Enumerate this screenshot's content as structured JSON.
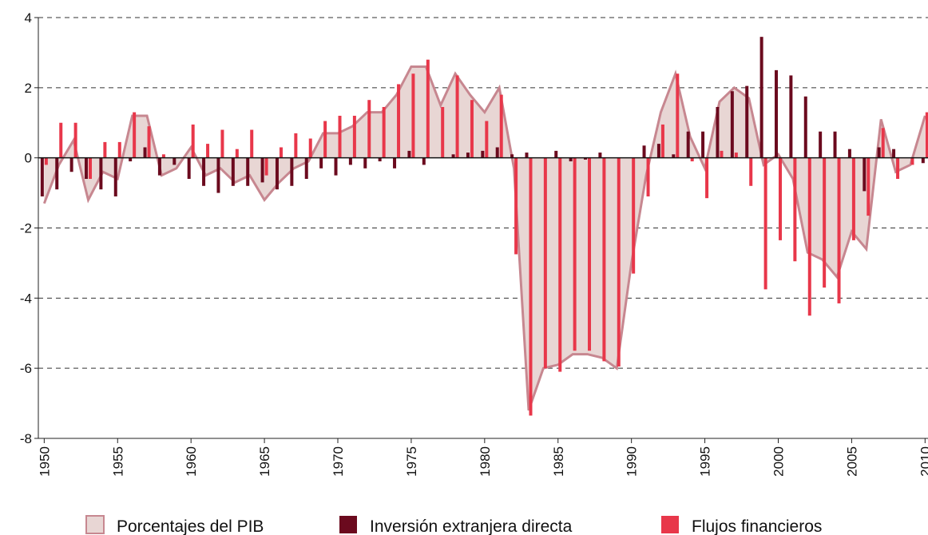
{
  "chart_data": {
    "type": "bar-area",
    "x": [
      1950,
      1951,
      1952,
      1953,
      1954,
      1955,
      1956,
      1957,
      1958,
      1959,
      1960,
      1961,
      1962,
      1963,
      1964,
      1965,
      1966,
      1967,
      1968,
      1969,
      1970,
      1971,
      1972,
      1973,
      1974,
      1975,
      1976,
      1977,
      1978,
      1979,
      1980,
      1981,
      1982,
      1983,
      1984,
      1985,
      1986,
      1987,
      1988,
      1989,
      1990,
      1991,
      1992,
      1993,
      1994,
      1995,
      1996,
      1997,
      1998,
      1999,
      2000,
      2001,
      2002,
      2003,
      2004,
      2005,
      2006,
      2007,
      2008,
      2009,
      2010
    ],
    "series": [
      {
        "name": "Porcentajes del PIB",
        "kind": "area",
        "color": "#e8d6d4",
        "stroke": "#c78790",
        "values": [
          -1.3,
          -0.2,
          0.5,
          -1.2,
          -0.4,
          -0.6,
          1.2,
          1.2,
          -0.5,
          -0.3,
          0.3,
          -0.5,
          -0.3,
          -0.7,
          -0.5,
          -1.2,
          -0.7,
          -0.3,
          -0.1,
          0.7,
          0.7,
          0.9,
          1.3,
          1.3,
          1.8,
          2.6,
          2.6,
          1.5,
          2.4,
          1.8,
          1.3,
          2.0,
          -0.3,
          -7.2,
          -6.0,
          -5.9,
          -5.6,
          -5.6,
          -5.7,
          -6.0,
          -3.0,
          -0.5,
          1.3,
          2.4,
          0.6,
          -0.3,
          1.6,
          2.0,
          1.7,
          -0.2,
          0.1,
          -0.6,
          -2.7,
          -2.9,
          -3.4,
          -2.1,
          -2.6,
          1.1,
          -0.4,
          -0.2,
          1.2
        ]
      },
      {
        "name": "Inversión extranjera directa",
        "kind": "bar",
        "color": "#6b0a1e",
        "values": [
          -1.1,
          -0.9,
          -0.4,
          -0.6,
          -0.9,
          -1.1,
          -0.1,
          0.3,
          -0.5,
          -0.2,
          -0.6,
          -0.8,
          -1.0,
          -0.8,
          -0.8,
          -0.7,
          -0.9,
          -0.8,
          -0.6,
          -0.3,
          -0.5,
          -0.2,
          -0.3,
          -0.1,
          -0.3,
          0.2,
          -0.2,
          0,
          0.1,
          0.15,
          0.2,
          0.3,
          0.1,
          0.15,
          0,
          0.2,
          -0.1,
          -0.05,
          0.15,
          0,
          0,
          0.35,
          0.4,
          0.1,
          0.75,
          0.75,
          1.45,
          1.9,
          2.05,
          3.45,
          2.5,
          2.35,
          1.75,
          0.75,
          0.75,
          0.25,
          -0.95,
          0.3,
          0.25,
          0,
          -0.15
        ]
      },
      {
        "name": "Flujos financieros",
        "kind": "bar",
        "color": "#e8374a",
        "values": [
          -0.2,
          1.0,
          1.0,
          -0.6,
          0.45,
          0.45,
          1.3,
          0.9,
          0.1,
          0,
          0.95,
          0.4,
          0.8,
          0.25,
          0.8,
          -0.5,
          0.3,
          0.7,
          0.55,
          1.05,
          1.2,
          1.2,
          1.65,
          1.45,
          2.1,
          2.4,
          2.8,
          1.45,
          2.35,
          1.65,
          1.05,
          1.8,
          -2.75,
          -7.35,
          -6.0,
          -6.1,
          -5.5,
          -5.5,
          -5.8,
          -5.95,
          -3.3,
          -1.1,
          0.95,
          2.4,
          -0.1,
          -1.15,
          0.2,
          0.15,
          -0.8,
          -3.75,
          -2.35,
          -2.95,
          -4.5,
          -3.7,
          -4.15,
          -2.35,
          -1.65,
          0.85,
          -0.6,
          -0.2,
          1.3
        ]
      }
    ],
    "xlim": [
      1949.6,
      2010.2
    ],
    "xticks": [
      1950,
      1955,
      1960,
      1965,
      1970,
      1975,
      1980,
      1985,
      1990,
      1995,
      2000,
      2005,
      2010
    ],
    "ylim": [
      -8,
      4
    ],
    "yticks": [
      -8,
      -6,
      -4,
      -2,
      0,
      2,
      4
    ],
    "grid": true,
    "legend": "bottom"
  }
}
